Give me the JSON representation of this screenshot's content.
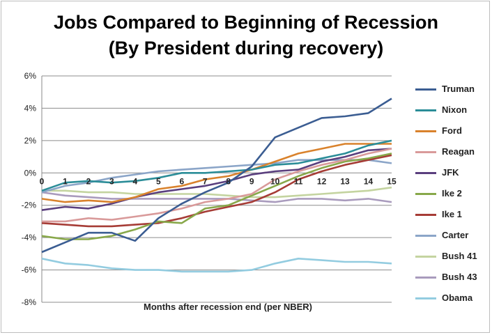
{
  "chart_data": {
    "type": "line",
    "title": "Jobs Compared to Beginning of Recession",
    "subtitle": "(By President during recovery)",
    "xlabel": "Months after recession end (per NBER)",
    "ylabel": "",
    "x": [
      0,
      1,
      2,
      3,
      4,
      5,
      6,
      7,
      8,
      9,
      10,
      11,
      12,
      13,
      14,
      15
    ],
    "x_tick_labels": [
      "0",
      "1",
      "2",
      "3",
      "4",
      "5",
      "6",
      "7",
      "8",
      "9",
      "10",
      "11",
      "12",
      "13",
      "14",
      "15"
    ],
    "xlim": [
      0,
      15
    ],
    "ylim": [
      -8,
      6
    ],
    "y_ticks": [
      6,
      4,
      2,
      0,
      -2,
      -4,
      -6,
      -8
    ],
    "y_tick_labels": [
      "6%",
      "4%",
      "2%",
      "0%",
      "-2%",
      "-4%",
      "-6%",
      "-8%"
    ],
    "grid": "horizontal",
    "legend_position": "right",
    "series": [
      {
        "name": "Truman",
        "color": "#3b5d92",
        "values": [
          -4.9,
          -4.3,
          -3.7,
          -3.7,
          -4.2,
          -2.8,
          -1.9,
          -1.2,
          -0.6,
          0.4,
          2.2,
          2.8,
          3.4,
          3.5,
          3.7,
          4.6
        ]
      },
      {
        "name": "Nixon",
        "color": "#2b8d98",
        "values": [
          -1.1,
          -0.6,
          -0.5,
          -0.6,
          -0.5,
          -0.3,
          0.0,
          0.0,
          0.1,
          0.2,
          0.5,
          0.6,
          0.9,
          1.2,
          1.7,
          2.0
        ]
      },
      {
        "name": "Ford",
        "color": "#d9822c",
        "values": [
          -1.6,
          -1.8,
          -1.7,
          -1.8,
          -1.5,
          -1.0,
          -0.8,
          -0.4,
          -0.2,
          0.2,
          0.7,
          1.2,
          1.5,
          1.8,
          1.8,
          1.8
        ]
      },
      {
        "name": "Reagan",
        "color": "#d99a9a",
        "values": [
          -3.0,
          -3.0,
          -2.8,
          -2.9,
          -2.7,
          -2.5,
          -2.2,
          -1.8,
          -1.6,
          -1.3,
          -0.4,
          0.1,
          0.5,
          0.8,
          1.2,
          1.5
        ]
      },
      {
        "name": "JFK",
        "color": "#5a3f7e",
        "values": [
          -2.3,
          -2.1,
          -2.2,
          -1.9,
          -1.5,
          -1.2,
          -1.0,
          -0.8,
          -0.5,
          -0.1,
          0.1,
          0.2,
          0.7,
          1.0,
          1.4,
          1.5
        ]
      },
      {
        "name": "Ike 2",
        "color": "#88a84a",
        "values": [
          -3.9,
          -4.1,
          -4.1,
          -3.9,
          -3.5,
          -3.0,
          -3.1,
          -2.2,
          -2.0,
          -1.4,
          -0.8,
          -0.2,
          0.3,
          0.7,
          0.9,
          1.2
        ]
      },
      {
        "name": "Ike 1",
        "color": "#a63c36",
        "values": [
          -3.1,
          -3.2,
          -3.3,
          -3.3,
          -3.2,
          -3.1,
          -2.8,
          -2.4,
          -2.1,
          -1.8,
          -1.2,
          -0.4,
          0.1,
          0.5,
          0.8,
          1.1
        ]
      },
      {
        "name": "Carter",
        "color": "#8ba5c8",
        "values": [
          -1.2,
          -0.8,
          -0.6,
          -0.3,
          -0.1,
          0.1,
          0.2,
          0.3,
          0.4,
          0.5,
          0.6,
          0.8,
          0.8,
          0.8,
          0.8,
          0.6
        ]
      },
      {
        "name": "Bush 41",
        "color": "#c4d4a0",
        "values": [
          -1.1,
          -1.1,
          -1.2,
          -1.2,
          -1.3,
          -1.3,
          -1.3,
          -1.3,
          -1.4,
          -1.5,
          -1.5,
          -1.4,
          -1.3,
          -1.2,
          -1.1,
          -0.9
        ]
      },
      {
        "name": "Bush 43",
        "color": "#a99bbd",
        "values": [
          -1.2,
          -1.4,
          -1.5,
          -1.6,
          -1.6,
          -1.6,
          -1.6,
          -1.6,
          -1.6,
          -1.7,
          -1.8,
          -1.6,
          -1.6,
          -1.7,
          -1.6,
          -1.8
        ]
      },
      {
        "name": "Obama",
        "color": "#93cce0",
        "values": [
          -5.3,
          -5.6,
          -5.7,
          -5.9,
          -6.0,
          -6.0,
          -6.1,
          -6.1,
          -6.1,
          -6.0,
          -5.6,
          -5.3,
          -5.4,
          -5.5,
          -5.5,
          -5.6
        ]
      }
    ]
  }
}
